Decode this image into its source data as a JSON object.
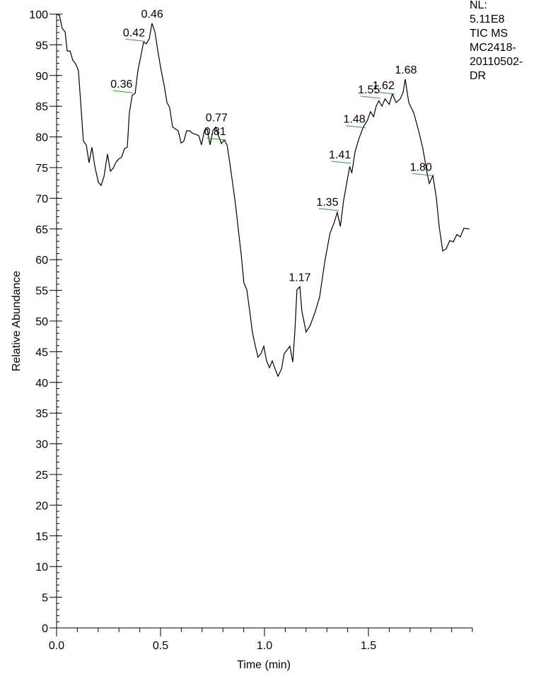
{
  "chart_data": {
    "type": "line",
    "x_label": "Time (min)",
    "y_label": "Relative Abundance",
    "info_lines": [
      "NL:",
      "5.11E8",
      "TIC  MS",
      "MC2418-",
      "20110502-",
      "DR"
    ],
    "xlim": [
      0,
      2.0
    ],
    "ylim": [
      0,
      100
    ],
    "xticks": [
      {
        "value": 0,
        "label": "0.0"
      },
      0.5,
      {
        "value": 1,
        "label": "1.0"
      },
      1.5
    ],
    "yticks": [
      0,
      5,
      10,
      15,
      20,
      25,
      30,
      35,
      40,
      45,
      50,
      55,
      60,
      65,
      70,
      75,
      80,
      85,
      90,
      95,
      100
    ],
    "series": [
      {
        "color": "#000000",
        "x": [
          0,
          0.014,
          0.027,
          0.041,
          0.051,
          0.065,
          0.078,
          0.092,
          0.105,
          0.116,
          0.129,
          0.143,
          0.156,
          0.17,
          0.184,
          0.201,
          0.214,
          0.228,
          0.245,
          0.259,
          0.272,
          0.286,
          0.299,
          0.313,
          0.327,
          0.34,
          0.35,
          0.364,
          0.378,
          0.391,
          0.405,
          0.418,
          0.432,
          0.446,
          0.459,
          0.473,
          0.486,
          0.503,
          0.517,
          0.531,
          0.544,
          0.558,
          0.571,
          0.585,
          0.599,
          0.612,
          0.626,
          0.639,
          0.653,
          0.67,
          0.684,
          0.697,
          0.711,
          0.724,
          0.738,
          0.752,
          0.765,
          0.779,
          0.793,
          0.806,
          0.82,
          0.833,
          0.847,
          0.861,
          0.874,
          0.888,
          0.901,
          0.915,
          0.929,
          0.942,
          0.956,
          0.969,
          0.983,
          0.997,
          1.01,
          1.024,
          1.037,
          1.051,
          1.065,
          1.082,
          1.095,
          1.109,
          1.122,
          1.136,
          1.146,
          1.156,
          1.17,
          1.18,
          1.2,
          1.22,
          1.245,
          1.265,
          1.29,
          1.315,
          1.335,
          1.35,
          1.365,
          1.38,
          1.395,
          1.41,
          1.42,
          1.435,
          1.455,
          1.475,
          1.495,
          1.51,
          1.525,
          1.537,
          1.55,
          1.565,
          1.58,
          1.6,
          1.615,
          1.633,
          1.653,
          1.667,
          1.677,
          1.694,
          1.718,
          1.741,
          1.762,
          1.782,
          1.793,
          1.81,
          1.827,
          1.84,
          1.857,
          1.874,
          1.891,
          1.908,
          1.925,
          1.942,
          1.959,
          1.986
        ],
        "values": [
          100,
          99.8,
          97.7,
          97.1,
          94,
          94,
          92.5,
          91.9,
          90.8,
          85.6,
          79.3,
          78.7,
          75.8,
          78.3,
          75.2,
          72.6,
          72.1,
          73.5,
          77.2,
          74.4,
          74.9,
          75.9,
          76.4,
          76.7,
          78.1,
          78.3,
          83.9,
          86.8,
          87.1,
          90.8,
          93.1,
          95.4,
          95.2,
          96,
          98.5,
          97.1,
          94.2,
          90.8,
          88.5,
          85.6,
          84.8,
          81.6,
          81.3,
          81,
          79,
          79.3,
          81,
          81,
          80.6,
          80.4,
          80.2,
          78.7,
          81,
          81.3,
          78.7,
          81,
          81.6,
          80.2,
          78.9,
          79.5,
          78.7,
          75.8,
          72.4,
          68.9,
          64.9,
          60.8,
          56.2,
          55.1,
          51.6,
          48.2,
          45.9,
          44.1,
          44.7,
          45.9,
          43.5,
          42.4,
          43.5,
          42.2,
          41,
          42.2,
          44.7,
          45.3,
          45.9,
          43.3,
          48.2,
          55.1,
          55.6,
          51.6,
          48.2,
          49.3,
          51.6,
          53.9,
          59.7,
          64.3,
          66,
          67.7,
          65.4,
          69.5,
          72.4,
          75.2,
          74.1,
          77.5,
          79.8,
          81.6,
          82.7,
          84.1,
          83.3,
          85,
          85.9,
          85,
          86.2,
          85.3,
          87,
          85.6,
          86.2,
          87.3,
          89.4,
          85.6,
          83.9,
          81,
          78.1,
          74.1,
          72.4,
          73.7,
          70,
          65.4,
          61.4,
          61.8,
          63.1,
          62.9,
          64.1,
          63.7,
          65.1,
          65
        ]
      }
    ],
    "annotations": [
      {
        "text": "0.36",
        "x": 0.36,
        "y": 87.3,
        "line_color": "#2ca02c"
      },
      {
        "text": "0.42",
        "x": 0.42,
        "y": 95.7,
        "line_color": "#2ca02c"
      },
      {
        "text": "0.46",
        "x": 0.46,
        "y": 98.5
      },
      {
        "text": "0.77",
        "x": 0.77,
        "y": 81.6
      },
      {
        "text": "0.81",
        "x": 0.81,
        "y": 79.6,
        "line_color": "#2ca02c"
      },
      {
        "text": "1.17",
        "x": 1.17,
        "y": 55.6
      },
      {
        "text": "1.35",
        "x": 1.35,
        "y": 68.1,
        "line_color": "#2ca02c"
      },
      {
        "text": "1.41",
        "x": 1.41,
        "y": 75.8,
        "line_color": "#2ca02c"
      },
      {
        "text": "1.48",
        "x": 1.48,
        "y": 81.6,
        "line_color": "#2ca02c"
      },
      {
        "text": "1.55",
        "x": 1.55,
        "y": 86.4,
        "line_color": "#2ca02c"
      },
      {
        "text": "1.62",
        "x": 1.62,
        "y": 87.1,
        "line_color": "#2ca02c"
      },
      {
        "text": "1.68",
        "x": 1.68,
        "y": 89.4
      },
      {
        "text": "1.80",
        "x": 1.8,
        "y": 73.8,
        "line_color": "#2ca02c"
      }
    ]
  }
}
